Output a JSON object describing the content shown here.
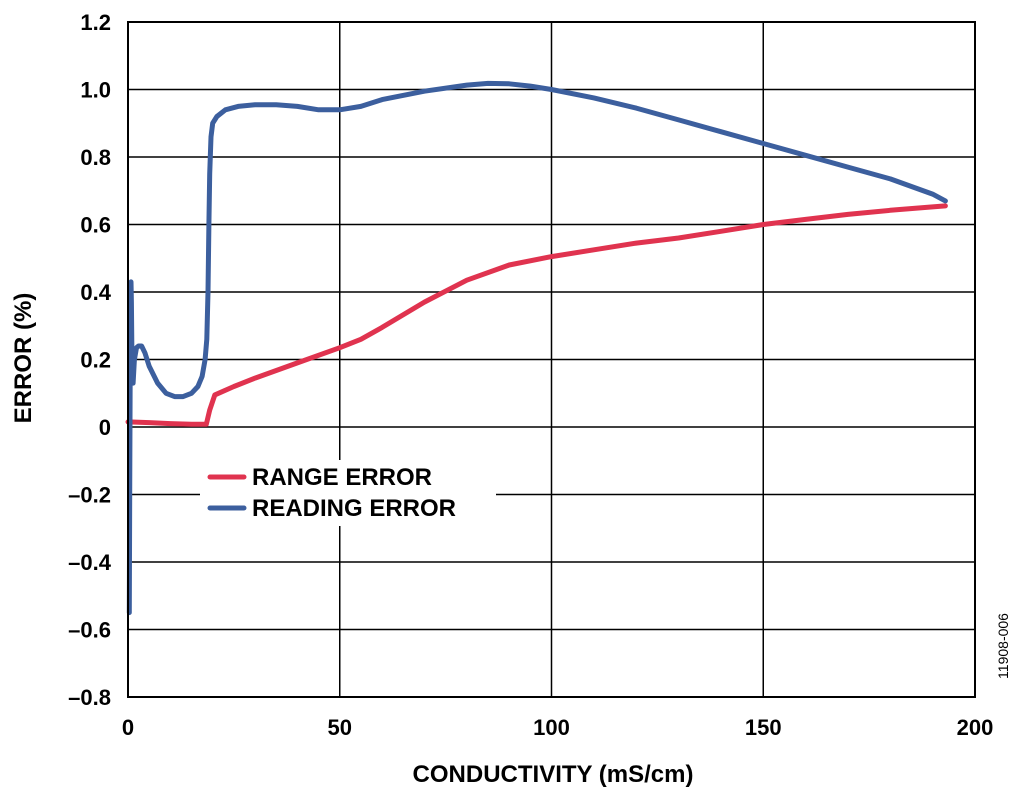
{
  "chart_data": {
    "type": "line",
    "xlabel": "CONDUCTIVITY (mS/cm)",
    "ylabel": "ERROR (%)",
    "xlim": [
      0,
      200
    ],
    "ylim": [
      -0.8,
      1.2
    ],
    "xticks": [
      0,
      50,
      100,
      150,
      200
    ],
    "xtick_labels": [
      "0",
      "50",
      "100",
      "150",
      "200"
    ],
    "yticks": [
      -0.8,
      -0.6,
      -0.4,
      -0.2,
      0,
      0.2,
      0.4,
      0.6,
      0.8,
      1.0,
      1.2
    ],
    "ytick_labels": [
      "–0.8",
      "–0.6",
      "–0.4",
      "–0.2",
      "0",
      "0.2",
      "0.4",
      "0.6",
      "0.8",
      "1.0",
      "1.2"
    ],
    "grid": true,
    "legend_position": "center-left",
    "series": [
      {
        "name": "RANGE ERROR",
        "color": "#e0334f",
        "x": [
          0,
          5,
          10,
          15,
          18.5,
          19.3,
          20.5,
          25,
          30,
          40,
          50,
          55,
          60,
          70,
          80,
          90,
          100,
          110,
          120,
          130,
          140,
          150,
          160,
          170,
          180,
          190,
          193
        ],
        "y": [
          0.015,
          0.013,
          0.01,
          0.008,
          0.008,
          0.05,
          0.095,
          0.12,
          0.145,
          0.19,
          0.235,
          0.26,
          0.295,
          0.37,
          0.435,
          0.48,
          0.505,
          0.525,
          0.545,
          0.56,
          0.58,
          0.6,
          0.615,
          0.63,
          0.642,
          0.652,
          0.655
        ]
      },
      {
        "name": "READING ERROR",
        "color": "#3c5f9e",
        "x": [
          0.3,
          0.4,
          0.5,
          0.6,
          0.7,
          0.8,
          0.9,
          1.0,
          1.2,
          1.5,
          2.0,
          2.5,
          3.2,
          4.0,
          5.0,
          7.0,
          9.0,
          11.0,
          13.0,
          15.0,
          16.5,
          17.5,
          18.2,
          18.6,
          18.9,
          19.1,
          19.3,
          19.6,
          20.0,
          21.0,
          23.0,
          26.0,
          30.0,
          35.0,
          40.0,
          45.0,
          50.0,
          55.0,
          60.0,
          70.0,
          80.0,
          85.0,
          90.0,
          95.0,
          100.0,
          110.0,
          120.0,
          130.0,
          140.0,
          150.0,
          160.0,
          170.0,
          180.0,
          190.0,
          193.0
        ],
        "y": [
          -0.55,
          -0.2,
          0.1,
          0.3,
          0.43,
          0.37,
          0.25,
          0.15,
          0.13,
          0.2,
          0.235,
          0.24,
          0.24,
          0.22,
          0.18,
          0.13,
          0.1,
          0.09,
          0.09,
          0.1,
          0.12,
          0.15,
          0.2,
          0.26,
          0.4,
          0.6,
          0.75,
          0.86,
          0.9,
          0.92,
          0.94,
          0.95,
          0.955,
          0.955,
          0.95,
          0.94,
          0.94,
          0.95,
          0.97,
          0.995,
          1.013,
          1.018,
          1.017,
          1.01,
          1.0,
          0.975,
          0.945,
          0.91,
          0.875,
          0.84,
          0.805,
          0.77,
          0.735,
          0.69,
          0.67
        ]
      }
    ]
  },
  "figure_id": "11908-006"
}
